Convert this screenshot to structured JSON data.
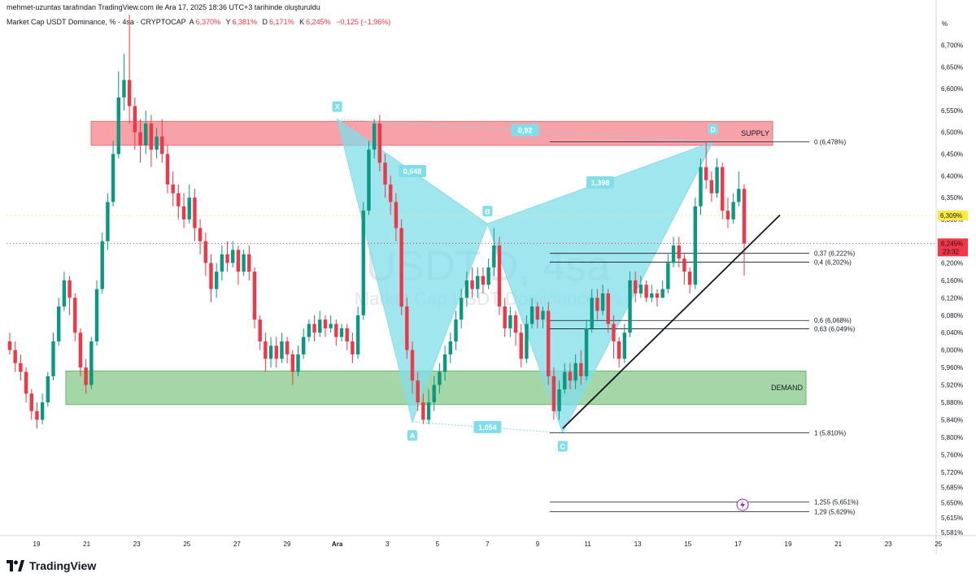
{
  "header": {
    "attribution": "mehmet-uzuntas tarafından TradingView.com ile Ara 17, 2025 18:36 UTC+3 tarihinde oluşturuldu"
  },
  "legend": {
    "symbol": "Market Cap USDT Dominance, % · 4sa · CRYPTOCAP",
    "open_label": "A",
    "open_value": "6,370%",
    "high_label": "Y",
    "high_value": "6,381%",
    "low_label": "D",
    "low_value": "6,171%",
    "close_label": "K",
    "close_value": "6,245%",
    "change": "−0,125 (−1,96%)"
  },
  "watermark": {
    "ticker": "USDT.D, 4sa",
    "name": "Market Cap USDT Dominance, %"
  },
  "footer": {
    "brand": "TradingView"
  },
  "chart_data": {
    "type": "candlestick",
    "title": "Market Cap USDT Dominance, % · 4sa · CRYPTOCAP",
    "ylabel": "%",
    "ylim": [
      5.574,
      6.77
    ],
    "x_tick_labels": [
      "19",
      "21",
      "23",
      "25",
      "27",
      "29",
      "Ara",
      "3",
      "5",
      "7",
      "9",
      "11",
      "13",
      "15",
      "17",
      "19",
      "21",
      "23",
      "25"
    ],
    "y_tick_labels": [
      "6,700%",
      "6,650%",
      "6,600%",
      "6,550%",
      "6,500%",
      "6,450%",
      "6,400%",
      "6,350%",
      "6,300%",
      "6,240%",
      "6,200%",
      "6,160%",
      "6,120%",
      "6,080%",
      "6,040%",
      "6,000%",
      "5,960%",
      "5,920%",
      "5,880%",
      "5,840%",
      "5,800%",
      "5,760%",
      "5,720%",
      "5,685%",
      "5,650%",
      "5,615%",
      "5,581%"
    ],
    "last_price": {
      "label": "6,245%",
      "countdown": "23:32",
      "value": 6.245,
      "color": "#f23645"
    },
    "highlight_price": {
      "label": "6,309%",
      "value": 6.309,
      "color": "#ffeb3b"
    },
    "zones": [
      {
        "label": "SUPPLY",
        "top": 6.525,
        "bottom": 6.47,
        "color": "#f7a1a8"
      },
      {
        "label": "DEMAND",
        "top": 5.952,
        "bottom": 5.875,
        "color": "#a5d6a7"
      }
    ],
    "fib_levels": [
      {
        "label": "0 (6,478%)",
        "value": 6.478
      },
      {
        "label": "0,37 (6,222%)",
        "value": 6.222
      },
      {
        "label": "0,4 (6,202%)",
        "value": 6.202
      },
      {
        "label": "0,6 (6,068%)",
        "value": 6.068
      },
      {
        "label": "0,63 (6,049%)",
        "value": 6.049
      },
      {
        "label": "1 (5,810%)",
        "value": 5.81
      },
      {
        "label": "1,255 (5,651%)",
        "value": 5.651
      },
      {
        "label": "1,29 (5,629%)",
        "value": 5.629
      }
    ],
    "harmonic": {
      "points": [
        {
          "label": "X",
          "x": "Ara 1",
          "y": 6.53
        },
        {
          "label": "A",
          "x": "Ara 4",
          "y": 5.835
        },
        {
          "label": "B",
          "x": "Ara 7",
          "y": 6.29
        },
        {
          "label": "C",
          "x": "Ara 10",
          "y": 5.81
        },
        {
          "label": "D",
          "x": "Ara 16",
          "y": 6.478
        }
      ],
      "ratios": [
        "0,648",
        "1,398",
        "0,92",
        "1,054"
      ],
      "color": "#80deea"
    },
    "trendline": {
      "from": {
        "x": "Ara 10",
        "y": 5.82
      },
      "to": {
        "x": "Ara 19",
        "y": 6.31
      }
    },
    "candles": [
      [
        6.02,
        6.0,
        6.04,
        5.99
      ],
      [
        6.0,
        5.97,
        6.02,
        5.95
      ],
      [
        5.97,
        5.95,
        5.99,
        5.93
      ],
      [
        5.95,
        5.9,
        5.96,
        5.88
      ],
      [
        5.9,
        5.86,
        5.91,
        5.84
      ],
      [
        5.86,
        5.84,
        5.88,
        5.82
      ],
      [
        5.84,
        5.88,
        5.9,
        5.83
      ],
      [
        5.88,
        5.94,
        5.95,
        5.87
      ],
      [
        5.94,
        6.02,
        6.04,
        5.93
      ],
      [
        6.02,
        6.1,
        6.12,
        6.01
      ],
      [
        6.1,
        6.16,
        6.18,
        6.09
      ],
      [
        6.16,
        6.12,
        6.17,
        6.08
      ],
      [
        6.12,
        6.04,
        6.13,
        6.02
      ],
      [
        6.04,
        5.96,
        6.05,
        5.94
      ],
      [
        5.96,
        5.92,
        5.98,
        5.9
      ],
      [
        5.92,
        6.02,
        6.03,
        5.91
      ],
      [
        6.02,
        6.14,
        6.16,
        6.01
      ],
      [
        6.14,
        6.25,
        6.27,
        6.13
      ],
      [
        6.25,
        6.34,
        6.36,
        6.23
      ],
      [
        6.34,
        6.45,
        6.48,
        6.33
      ],
      [
        6.45,
        6.58,
        6.64,
        6.44
      ],
      [
        6.58,
        6.62,
        6.68,
        6.55
      ],
      [
        6.62,
        6.56,
        6.77,
        6.52
      ],
      [
        6.56,
        6.5,
        6.58,
        6.46
      ],
      [
        6.5,
        6.47,
        6.53,
        6.43
      ],
      [
        6.47,
        6.52,
        6.55,
        6.45
      ],
      [
        6.52,
        6.46,
        6.54,
        6.42
      ],
      [
        6.46,
        6.49,
        6.51,
        6.44
      ],
      [
        6.49,
        6.45,
        6.53,
        6.43
      ],
      [
        6.45,
        6.38,
        6.47,
        6.36
      ],
      [
        6.38,
        6.36,
        6.41,
        6.33
      ],
      [
        6.36,
        6.33,
        6.38,
        6.3
      ],
      [
        6.33,
        6.3,
        6.36,
        6.28
      ],
      [
        6.3,
        6.35,
        6.38,
        6.29
      ],
      [
        6.35,
        6.28,
        6.37,
        6.25
      ],
      [
        6.28,
        6.25,
        6.3,
        6.22
      ],
      [
        6.25,
        6.2,
        6.27,
        6.17
      ],
      [
        6.2,
        6.14,
        6.22,
        6.11
      ],
      [
        6.14,
        6.18,
        6.2,
        6.12
      ],
      [
        6.18,
        6.22,
        6.24,
        6.16
      ],
      [
        6.22,
        6.2,
        6.25,
        6.18
      ],
      [
        6.2,
        6.23,
        6.25,
        6.19
      ],
      [
        6.23,
        6.18,
        6.24,
        6.15
      ],
      [
        6.18,
        6.22,
        6.23,
        6.17
      ],
      [
        6.22,
        6.18,
        6.24,
        6.16
      ],
      [
        6.18,
        6.07,
        6.19,
        6.05
      ],
      [
        6.07,
        6.02,
        6.08,
        6.0
      ],
      [
        6.02,
        5.98,
        6.04,
        5.95
      ],
      [
        5.98,
        6.01,
        6.03,
        5.96
      ],
      [
        6.01,
        5.98,
        6.03,
        5.96
      ],
      [
        5.98,
        6.02,
        6.04,
        5.97
      ],
      [
        6.02,
        5.99,
        6.03,
        5.97
      ],
      [
        5.99,
        5.95,
        6.0,
        5.92
      ],
      [
        5.95,
        5.99,
        6.01,
        5.94
      ],
      [
        5.99,
        6.03,
        6.05,
        5.98
      ],
      [
        6.03,
        6.06,
        6.07,
        6.02
      ],
      [
        6.06,
        6.04,
        6.08,
        6.02
      ],
      [
        6.04,
        6.07,
        6.09,
        6.03
      ],
      [
        6.07,
        6.05,
        6.08,
        6.03
      ],
      [
        6.05,
        6.06,
        6.08,
        6.04
      ],
      [
        6.06,
        6.03,
        6.07,
        6.01
      ],
      [
        6.03,
        6.05,
        6.06,
        6.02
      ],
      [
        6.05,
        6.02,
        6.06,
        6.0
      ],
      [
        6.02,
        5.99,
        6.04,
        5.97
      ],
      [
        5.99,
        6.08,
        6.1,
        5.98
      ],
      [
        6.08,
        6.32,
        6.34,
        6.07
      ],
      [
        6.32,
        6.46,
        6.48,
        6.31
      ],
      [
        6.46,
        6.52,
        6.53,
        6.44
      ],
      [
        6.52,
        6.43,
        6.54,
        6.41
      ],
      [
        6.43,
        6.38,
        6.45,
        6.35
      ],
      [
        6.38,
        6.34,
        6.4,
        6.31
      ],
      [
        6.34,
        6.28,
        6.36,
        6.25
      ],
      [
        6.28,
        6.1,
        6.3,
        6.08
      ],
      [
        6.1,
        6.0,
        6.12,
        5.98
      ],
      [
        6.0,
        5.93,
        6.02,
        5.9
      ],
      [
        5.93,
        5.88,
        5.95,
        5.86
      ],
      [
        5.88,
        5.84,
        5.9,
        5.83
      ],
      [
        5.84,
        5.88,
        5.91,
        5.83
      ],
      [
        5.88,
        5.92,
        5.94,
        5.86
      ],
      [
        5.92,
        5.95,
        5.97,
        5.9
      ],
      [
        5.95,
        5.99,
        6.01,
        5.93
      ],
      [
        5.99,
        6.02,
        6.04,
        5.97
      ],
      [
        6.02,
        6.07,
        6.09,
        6.0
      ],
      [
        6.07,
        6.12,
        6.14,
        6.05
      ],
      [
        6.12,
        6.16,
        6.18,
        6.1
      ],
      [
        6.16,
        6.14,
        6.19,
        6.12
      ],
      [
        6.14,
        6.17,
        6.19,
        6.12
      ],
      [
        6.17,
        6.15,
        6.19,
        6.13
      ],
      [
        6.15,
        6.19,
        6.21,
        6.14
      ],
      [
        6.19,
        6.24,
        6.28,
        6.17
      ],
      [
        6.24,
        6.1,
        6.26,
        6.08
      ],
      [
        6.1,
        6.05,
        6.12,
        6.03
      ],
      [
        6.05,
        6.08,
        6.1,
        6.03
      ],
      [
        6.08,
        6.04,
        6.09,
        6.01
      ],
      [
        6.04,
        5.98,
        6.06,
        5.96
      ],
      [
        5.98,
        6.06,
        6.08,
        5.97
      ],
      [
        6.06,
        6.1,
        6.12,
        6.05
      ],
      [
        6.1,
        6.07,
        6.11,
        6.05
      ],
      [
        6.07,
        6.09,
        6.1,
        6.05
      ],
      [
        6.09,
        5.94,
        6.11,
        5.92
      ],
      [
        5.94,
        5.86,
        5.96,
        5.84
      ],
      [
        5.86,
        5.91,
        5.93,
        5.84
      ],
      [
        5.91,
        5.95,
        5.97,
        5.9
      ],
      [
        5.95,
        5.93,
        5.97,
        5.91
      ],
      [
        5.93,
        5.97,
        5.99,
        5.91
      ],
      [
        5.97,
        5.94,
        6.0,
        5.92
      ],
      [
        5.94,
        6.05,
        6.07,
        5.93
      ],
      [
        6.05,
        6.12,
        6.14,
        6.04
      ],
      [
        6.12,
        6.09,
        6.14,
        6.07
      ],
      [
        6.09,
        6.13,
        6.15,
        6.08
      ],
      [
        6.13,
        6.06,
        6.14,
        6.04
      ],
      [
        6.06,
        6.02,
        6.08,
        5.98
      ],
      [
        6.02,
        5.98,
        6.03,
        5.96
      ],
      [
        5.98,
        6.04,
        6.06,
        5.97
      ],
      [
        6.04,
        6.16,
        6.18,
        6.03
      ],
      [
        6.16,
        6.13,
        6.18,
        6.11
      ],
      [
        6.13,
        6.15,
        6.17,
        6.12
      ],
      [
        6.15,
        6.12,
        6.16,
        6.11
      ],
      [
        6.12,
        6.13,
        6.15,
        6.11
      ],
      [
        6.13,
        6.12,
        6.14,
        6.1
      ],
      [
        6.12,
        6.14,
        6.16,
        6.12
      ],
      [
        6.14,
        6.2,
        6.22,
        6.13
      ],
      [
        6.2,
        6.24,
        6.26,
        6.19
      ],
      [
        6.24,
        6.21,
        6.26,
        6.19
      ],
      [
        6.21,
        6.18,
        6.22,
        6.15
      ],
      [
        6.18,
        6.15,
        6.19,
        6.13
      ],
      [
        6.15,
        6.33,
        6.35,
        6.14
      ],
      [
        6.33,
        6.42,
        6.44,
        6.31
      ],
      [
        6.42,
        6.39,
        6.48,
        6.37
      ],
      [
        6.39,
        6.36,
        6.41,
        6.34
      ],
      [
        6.36,
        6.42,
        6.44,
        6.35
      ],
      [
        6.42,
        6.32,
        6.43,
        6.3
      ],
      [
        6.32,
        6.3,
        6.35,
        6.28
      ],
      [
        6.3,
        6.34,
        6.36,
        6.29
      ],
      [
        6.34,
        6.37,
        6.41,
        6.33
      ],
      [
        6.37,
        6.245,
        6.381,
        6.171
      ]
    ]
  }
}
